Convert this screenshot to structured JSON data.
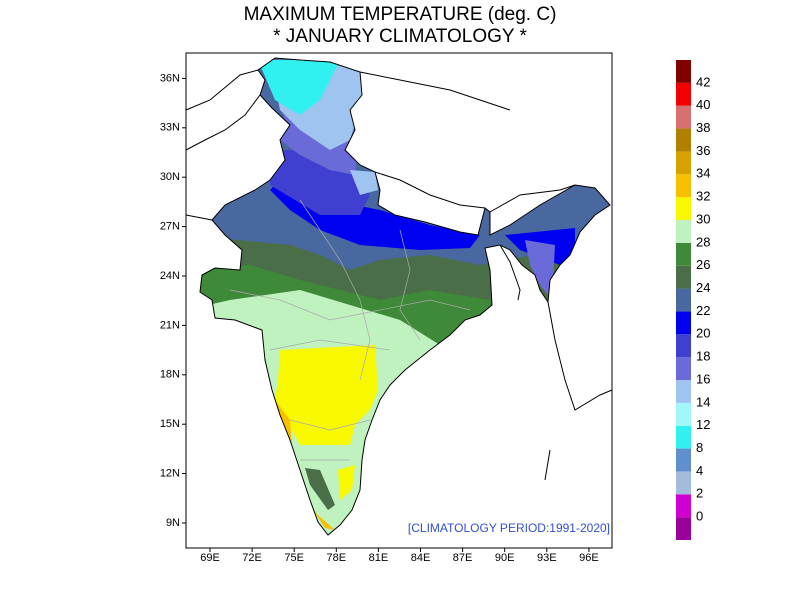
{
  "title": [
    "MAXIMUM TEMPERATURE (deg. C)",
    "* JANUARY CLIMATOLOGY *"
  ],
  "lon_labels": [
    "69E",
    "72E",
    "75E",
    "78E",
    "81E",
    "84E",
    "87E",
    "90E",
    "93E",
    "96E"
  ],
  "lat_labels": [
    "9N",
    "12N",
    "15N",
    "18N",
    "21N",
    "24N",
    "27N",
    "30N",
    "33N",
    "36N"
  ],
  "colorbar": {
    "labels": [
      0,
      2,
      4,
      8,
      12,
      14,
      16,
      18,
      20,
      22,
      24,
      26,
      28,
      30,
      32,
      34,
      36,
      38,
      40,
      42
    ],
    "colors": [
      "#9a009a",
      "#d000d0",
      "#a4bcdc",
      "#5f8fcf",
      "#30f0f0",
      "#a0f8f8",
      "#a0c4f0",
      "#6a6ad8",
      "#4040d0",
      "#0000f0",
      "#4a68a0",
      "#4a6e48",
      "#3f8a38",
      "#c0f2c0",
      "#f8f800",
      "#f8c000",
      "#d8a000",
      "#b08000",
      "#d87070",
      "#f00000",
      "#800000"
    ]
  },
  "annotation": "[CLIMATOLOGY PERIOD:1991-2020]"
}
